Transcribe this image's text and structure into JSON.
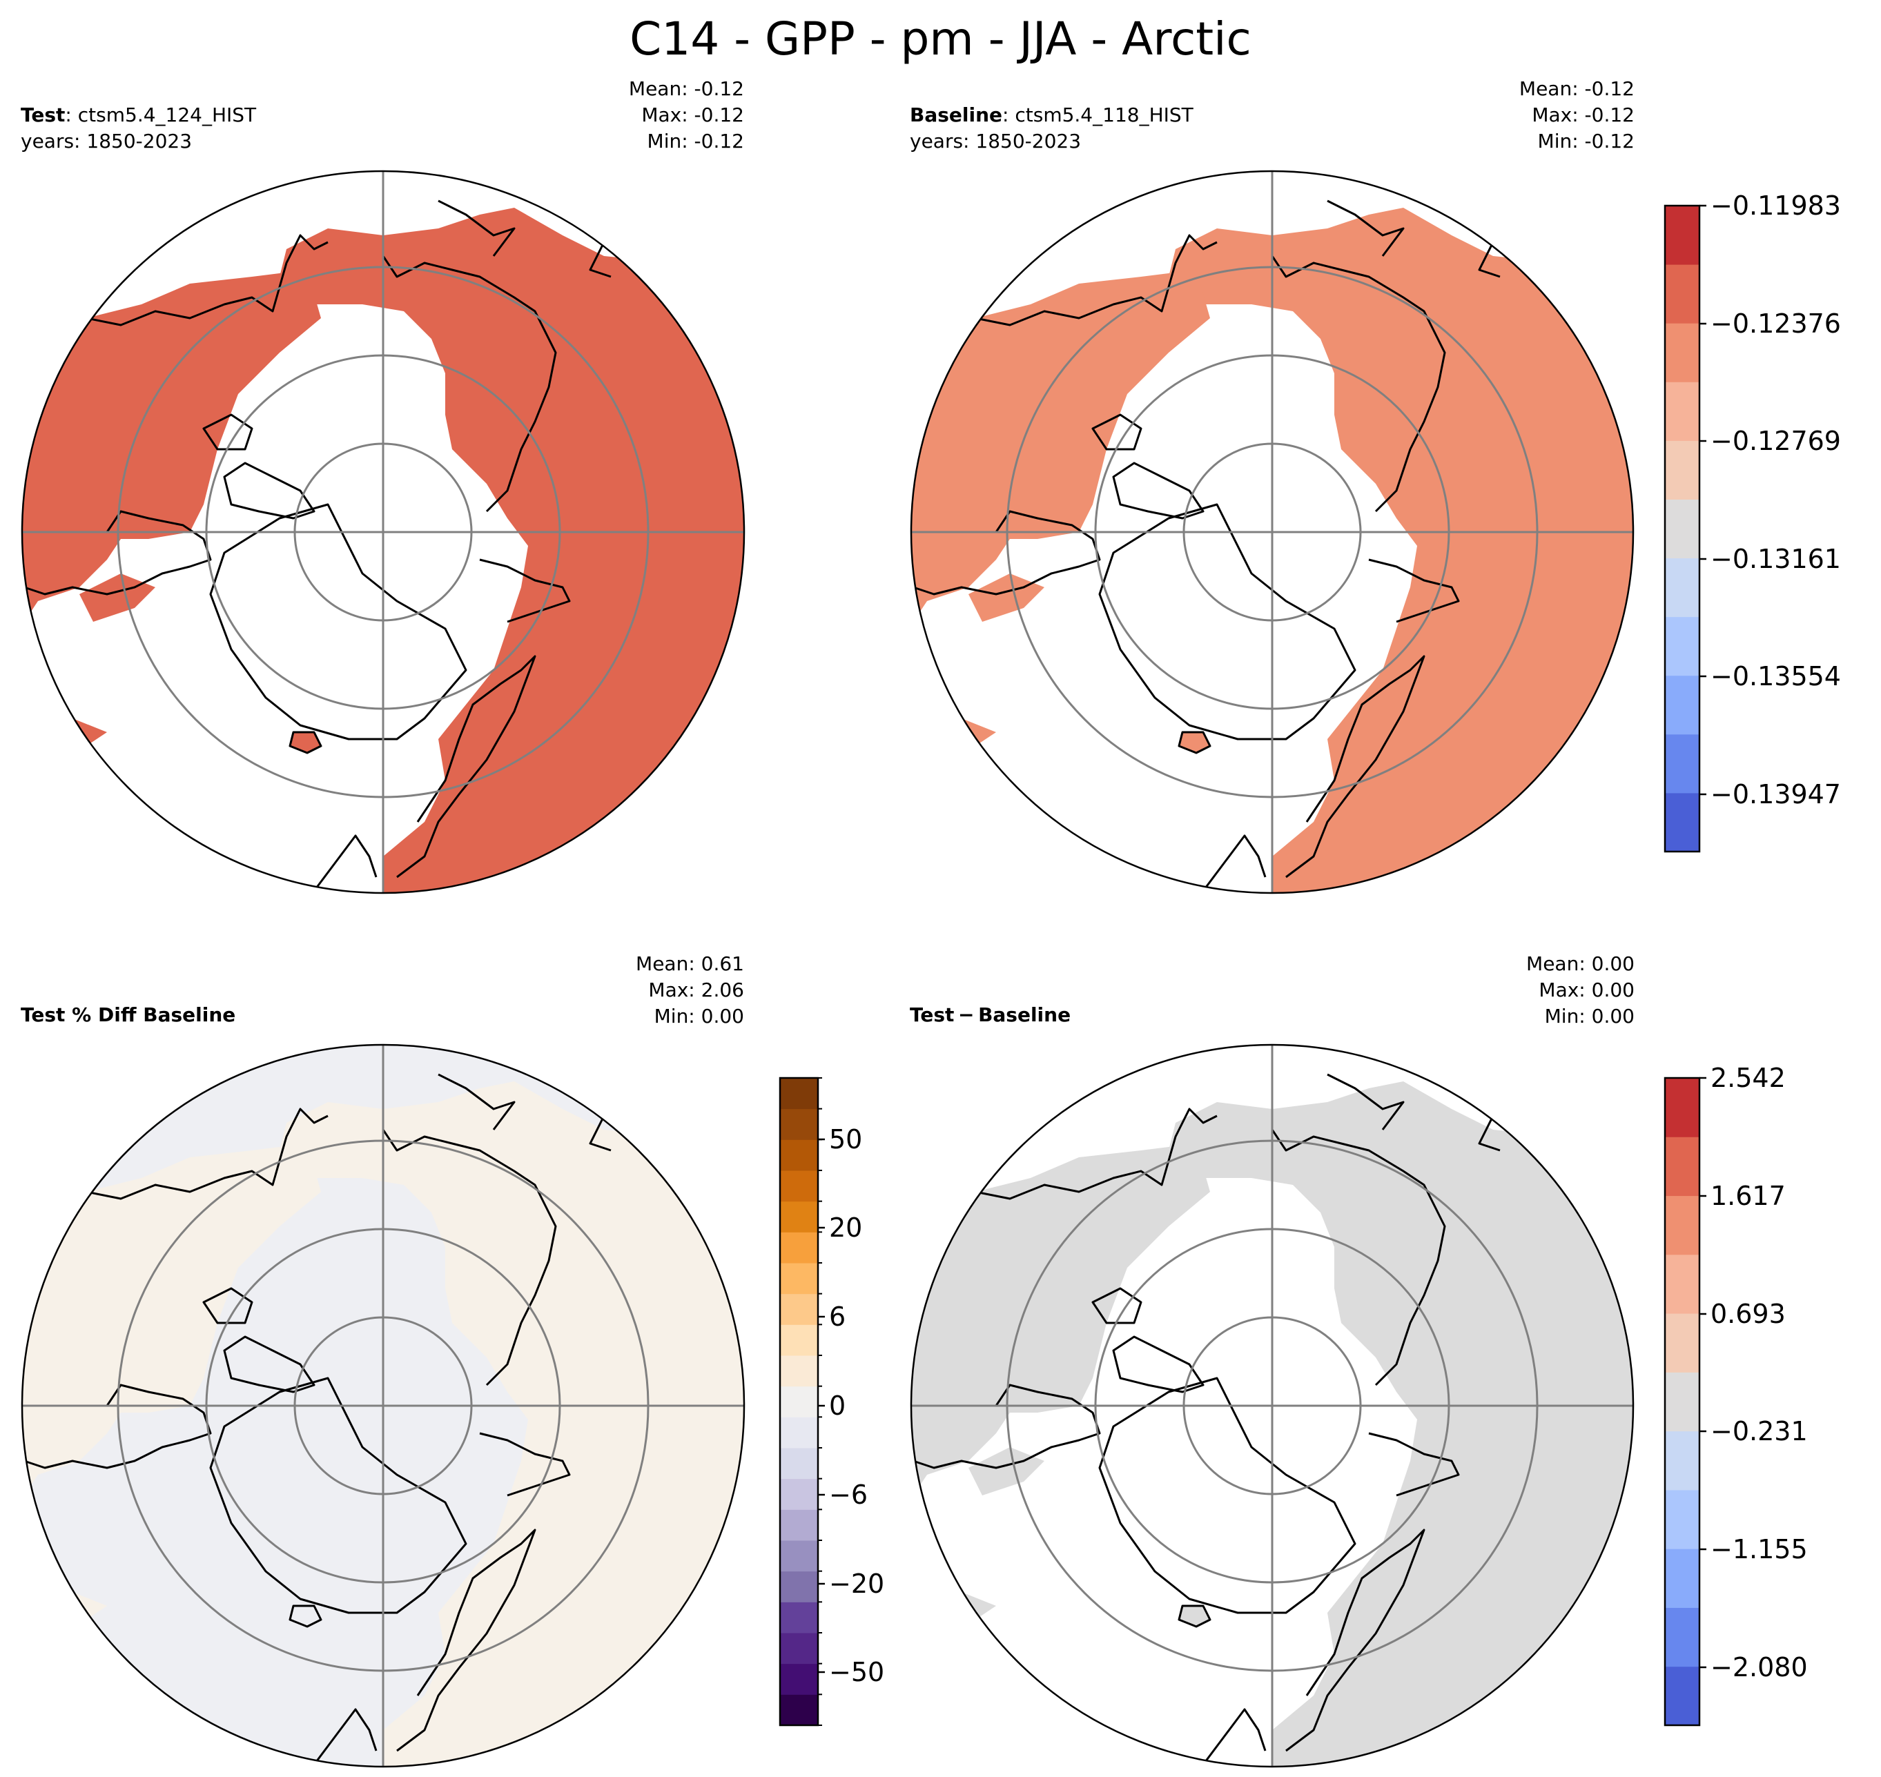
{
  "figure_title": "C14 - GPP - pm - JJA - Arctic",
  "chart_data": [
    {
      "type": "heatmap",
      "projection": "north polar stereographic",
      "panel": "Test",
      "title_bold": "Test",
      "case_name": "ctsm5.4_124_HIST",
      "years_text": "years: 1850-2023",
      "stats": {
        "mean": "Mean: -0.12",
        "max": "Max: -0.12",
        "min": "Min: -0.12"
      },
      "field_value": -0.12,
      "fill_color": "#e06650",
      "colorbar_shared_with": "Baseline"
    },
    {
      "type": "heatmap",
      "projection": "north polar stereographic",
      "panel": "Baseline",
      "title_bold": "Baseline",
      "case_name": "ctsm5.4_118_HIST",
      "years_text": "years: 1850-2023",
      "stats": {
        "mean": "Mean: -0.12",
        "max": "Max: -0.12",
        "min": "Min: -0.12"
      },
      "field_value": -0.12,
      "fill_color": "#ef9071",
      "colorbar": {
        "tick_labels": [
          "−0.11983",
          "−0.12376",
          "−0.12769",
          "−0.13161",
          "−0.13554",
          "−0.13947"
        ],
        "colors": [
          "#4a5fd6",
          "#6787ee",
          "#89abfb",
          "#abc6fd",
          "#c8d8f4",
          "#dddcdc",
          "#f3cbb5",
          "#f6b399",
          "#ef9071",
          "#e06650",
          "#c43032"
        ]
      }
    },
    {
      "type": "heatmap",
      "projection": "north polar stereographic",
      "panel": "Test % Diff Baseline",
      "title_bold": "Test % Diff Baseline",
      "stats": {
        "mean": "Mean:  0.61",
        "max": "Max:  2.06",
        "min": "Min:  0.00"
      },
      "land_fill_low": "#f7f1e8",
      "land_fill_high": "#eeeff3",
      "colorbar": {
        "tick_labels": [
          "50",
          "20",
          "6",
          "0",
          "−6",
          "−20",
          "−50"
        ],
        "colors": [
          "#2d004b",
          "#430e73",
          "#542788",
          "#63419a",
          "#8073ac",
          "#9890c0",
          "#b2abd2",
          "#c9c5e1",
          "#d8daeb",
          "#e7e8f1",
          "#f1f0ef",
          "#faead6",
          "#fee0b6",
          "#fdc98a",
          "#fdb863",
          "#f7a03c",
          "#e08214",
          "#ce6b0c",
          "#b35806",
          "#97490a",
          "#7f3b08"
        ]
      }
    },
    {
      "type": "heatmap",
      "projection": "north polar stereographic",
      "panel": "Test − Baseline",
      "title_bold": "Test − Baseline",
      "stats": {
        "mean": "Mean:  0.00",
        "max": "Max:  0.00",
        "min": "Min:  0.00"
      },
      "fill_color": "#dcdcdc",
      "colorbar": {
        "tick_labels": [
          "2.542",
          "1.617",
          "0.693",
          "−0.231",
          "−1.155",
          "−2.080"
        ],
        "colors": [
          "#4a5fd6",
          "#6787ee",
          "#89abfb",
          "#abc6fd",
          "#c8d8f4",
          "#dddcdc",
          "#f3cbb5",
          "#f6b399",
          "#ef9071",
          "#e06650",
          "#c43032"
        ]
      }
    }
  ]
}
